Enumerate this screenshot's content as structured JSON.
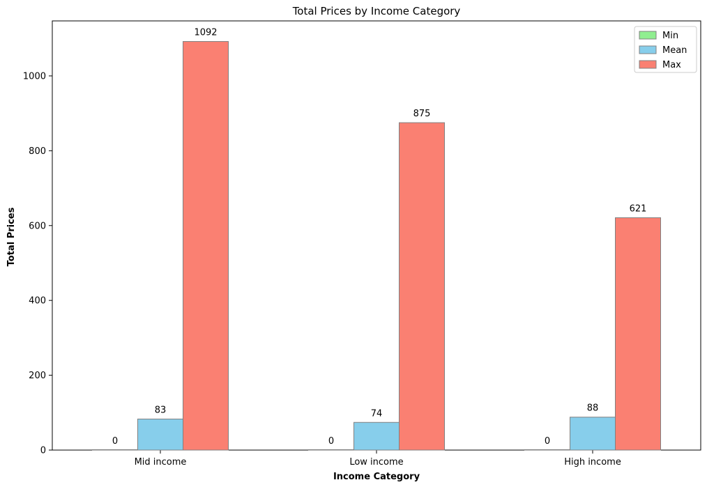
{
  "chart_data": {
    "type": "bar",
    "title": "Total Prices by Income Category",
    "xlabel": "Income Category",
    "ylabel": "Total Prices",
    "categories": [
      "Mid income",
      "Low income",
      "High income"
    ],
    "series": [
      {
        "name": "Min",
        "values": [
          0,
          0,
          0
        ],
        "color": "#90ee90"
      },
      {
        "name": "Mean",
        "values": [
          83,
          74,
          88
        ],
        "color": "#87ceeb"
      },
      {
        "name": "Max",
        "values": [
          1092,
          875,
          621
        ],
        "color": "#fa8072"
      }
    ],
    "data_labels": [
      [
        "0",
        "0",
        "0"
      ],
      [
        "83",
        "74",
        "88"
      ],
      [
        "1092",
        "875",
        "621"
      ]
    ],
    "ylim": [
      0,
      1147
    ],
    "yticks": [
      0,
      200,
      400,
      600,
      800,
      1000
    ],
    "ytick_labels": [
      "0",
      "200",
      "400",
      "600",
      "800",
      "1000"
    ],
    "grid": false,
    "legend_position": "top-right",
    "bar_edge_color": "#808080"
  }
}
